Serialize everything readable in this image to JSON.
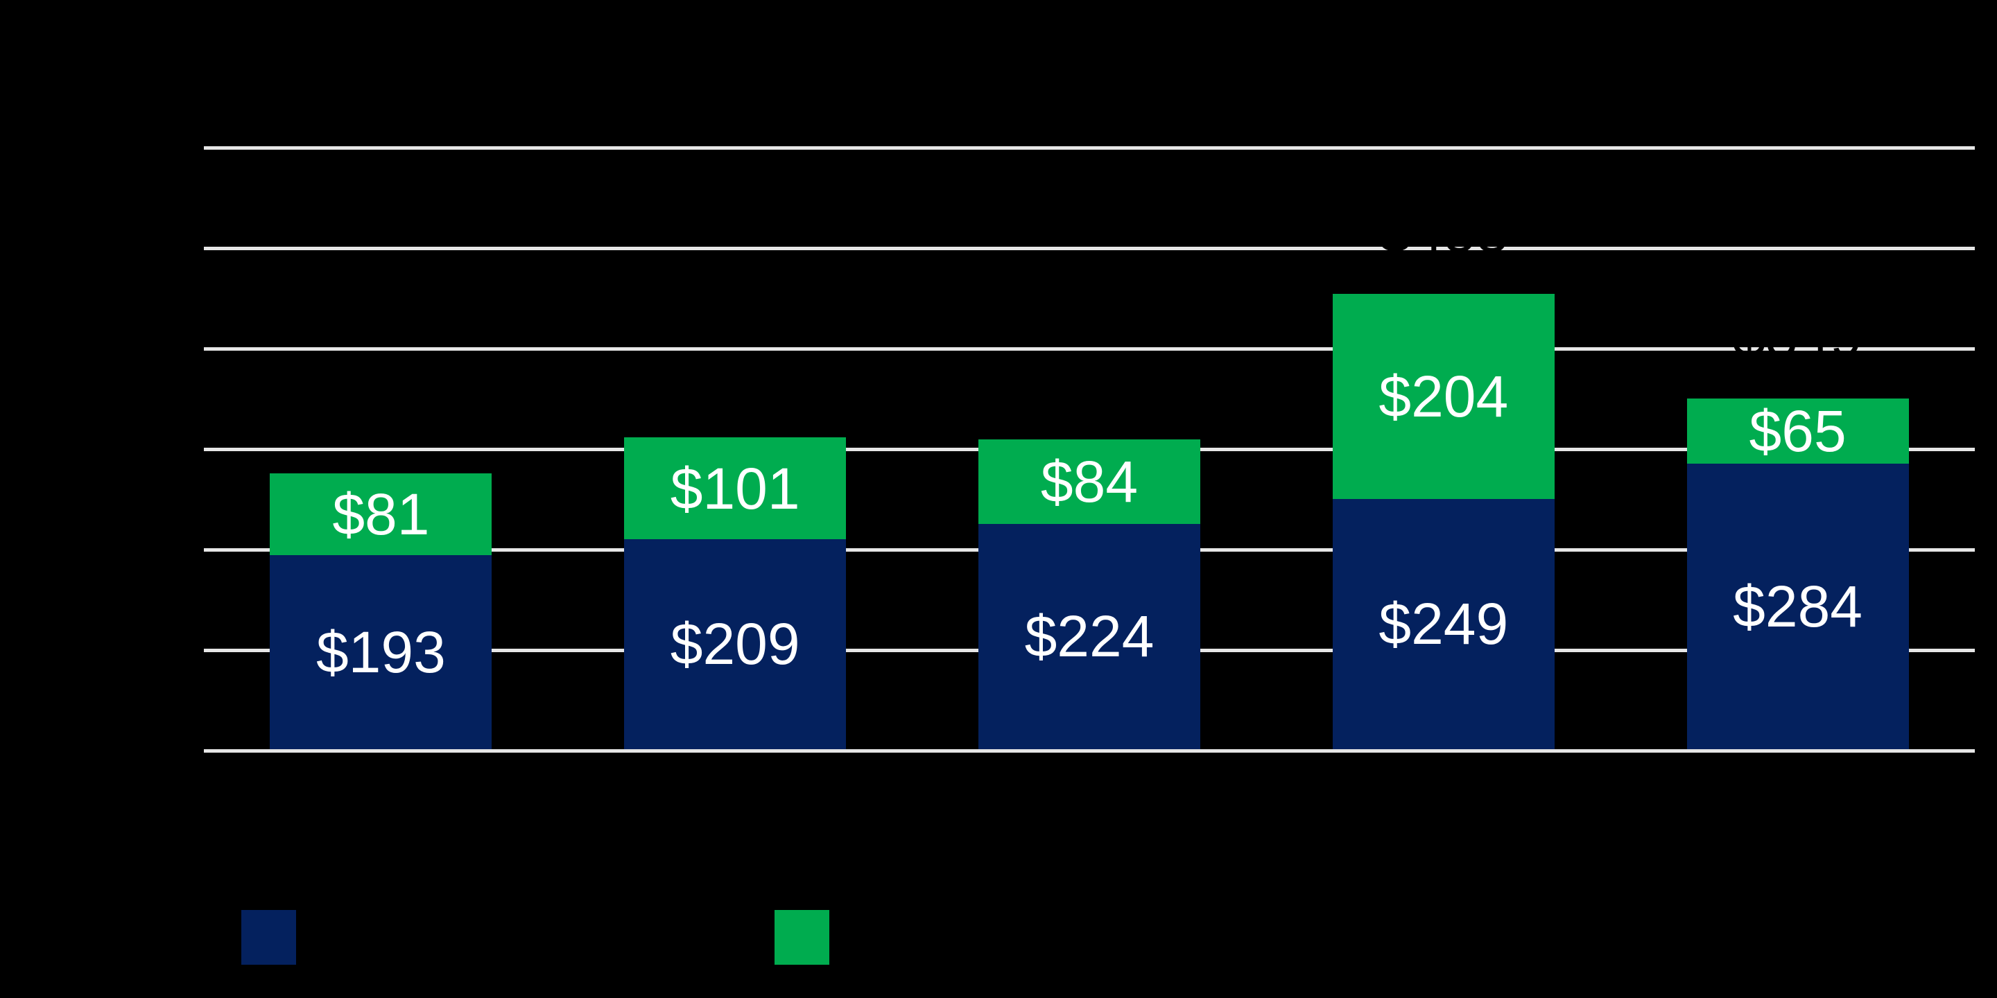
{
  "chart_data": {
    "type": "bar",
    "stacked": true,
    "background_color": "#000000",
    "title_visible": false,
    "categories_visible": false,
    "num_categories": 5,
    "series": [
      {
        "id": "navy-segment",
        "color": "#04215E",
        "values": [
          193,
          209,
          224,
          249,
          284
        ]
      },
      {
        "id": "green-segment",
        "color": "#00AC4F",
        "values": [
          81,
          101,
          84,
          204,
          65
        ]
      }
    ],
    "data_labels": {
      "color": "#FFFFFF",
      "prefix": "$",
      "navy": [
        "$193",
        "$209",
        "$224",
        "$249",
        "$284"
      ],
      "green": [
        "$81",
        "$101",
        "$84",
        "$204",
        "$65"
      ]
    },
    "total_labels": {
      "color": "#000000",
      "values": [
        null,
        null,
        null,
        "$453",
        "$349"
      ],
      "note": "black text above bars; visible only as knocked-out gaps where it crosses the white gridlines above bars 4 and 5"
    },
    "axes": {
      "y": {
        "min": 0,
        "max": 600,
        "gridline_step": 100,
        "gridline_color": "#E6E6E6",
        "tick_labels_visible": false
      },
      "x": {
        "tick_labels_visible": false
      }
    },
    "legend": {
      "position": "bottom-left",
      "items": [
        {
          "swatch_color": "#04215E",
          "label_visible": false
        },
        {
          "swatch_color": "#00AC4F",
          "label_visible": false
        }
      ]
    }
  }
}
